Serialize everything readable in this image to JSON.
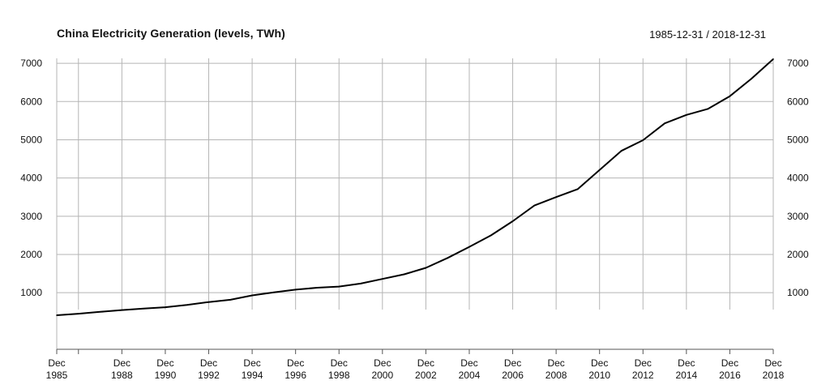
{
  "header": {
    "title": "China Electricity Generation (levels, TWh)",
    "date_range": "1985-12-31 / 2018-12-31"
  },
  "colors": {
    "line": "#000000",
    "grid": "#b5b5b5"
  },
  "chart_data": {
    "type": "line",
    "title": "China Electricity Generation (levels, TWh)",
    "xlabel": "",
    "ylabel": "",
    "x": [
      1985,
      1986,
      1987,
      1988,
      1989,
      1990,
      1991,
      1992,
      1993,
      1994,
      1995,
      1996,
      1997,
      1998,
      1999,
      2000,
      2001,
      2002,
      2003,
      2004,
      2005,
      2006,
      2007,
      2008,
      2009,
      2010,
      2011,
      2012,
      2013,
      2014,
      2015,
      2016,
      2017,
      2018
    ],
    "series": [
      {
        "values": [
          410,
          450,
          500,
          545,
          585,
          620,
          680,
          755,
          815,
          930,
          1010,
          1080,
          1130,
          1160,
          1240,
          1360,
          1480,
          1650,
          1910,
          2200,
          2500,
          2870,
          3280,
          3500,
          3710,
          4210,
          4710,
          4990,
          5430,
          5650,
          5810,
          6140,
          6600,
          7110
        ]
      }
    ],
    "ylim": [
      -480,
      7130
    ],
    "y_ticks": [
      "1000",
      "2000",
      "3000",
      "4000",
      "5000",
      "6000",
      "7000"
    ],
    "x_ticks": [
      {
        "top": "Dec",
        "bottom": "1985"
      },
      {
        "top": "Dec",
        "bottom": "1988"
      },
      {
        "top": "Dec",
        "bottom": "1990"
      },
      {
        "top": "Dec",
        "bottom": "1992"
      },
      {
        "top": "Dec",
        "bottom": "1994"
      },
      {
        "top": "Dec",
        "bottom": "1996"
      },
      {
        "top": "Dec",
        "bottom": "1998"
      },
      {
        "top": "Dec",
        "bottom": "2000"
      },
      {
        "top": "Dec",
        "bottom": "2002"
      },
      {
        "top": "Dec",
        "bottom": "2004"
      },
      {
        "top": "Dec",
        "bottom": "2006"
      },
      {
        "top": "Dec",
        "bottom": "2008"
      },
      {
        "top": "Dec",
        "bottom": "2010"
      },
      {
        "top": "Dec",
        "bottom": "2012"
      },
      {
        "top": "Dec",
        "bottom": "2014"
      },
      {
        "top": "Dec",
        "bottom": "2016"
      },
      {
        "top": "Dec",
        "bottom": "2018"
      }
    ],
    "vertical_gridlines_years": [
      1986,
      1988,
      1990,
      1992,
      1994,
      1996,
      1998,
      2000,
      2002,
      2004,
      2006,
      2008,
      2010,
      2012,
      2014,
      2016,
      2018
    ],
    "grid": true,
    "y_axis_labels": "both sides"
  }
}
